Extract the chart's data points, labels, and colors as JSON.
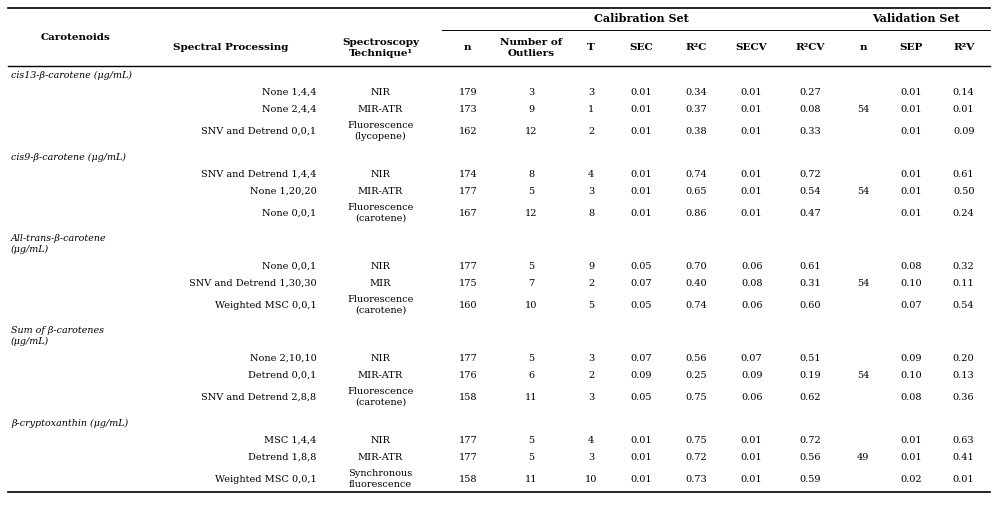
{
  "sections": [
    {
      "label": "cis13-β-carotene (μg/mL)",
      "rows": [
        [
          "None 1,4,4",
          "NIR",
          "179",
          "3",
          "3",
          "0.01",
          "0.34",
          "0.01",
          "0.27",
          "",
          "0.01",
          "0.14"
        ],
        [
          "None 2,4,4",
          "MIR-ATR",
          "173",
          "9",
          "1",
          "0.01",
          "0.37",
          "0.01",
          "0.08",
          "54",
          "0.01",
          "0.01"
        ],
        [
          "SNV and Detrend 0,0,1",
          "Fluorescence\n(lycopene)",
          "162",
          "12",
          "2",
          "0.01",
          "0.38",
          "0.01",
          "0.33",
          "",
          "0.01",
          "0.09"
        ]
      ]
    },
    {
      "label": "cis9-β-carotene (μg/mL)",
      "rows": [
        [
          "SNV and Detrend 1,4,4",
          "NIR",
          "174",
          "8",
          "4",
          "0.01",
          "0.74",
          "0.01",
          "0.72",
          "",
          "0.01",
          "0.61"
        ],
        [
          "None 1,20,20",
          "MIR-ATR",
          "177",
          "5",
          "3",
          "0.01",
          "0.65",
          "0.01",
          "0.54",
          "54",
          "0.01",
          "0.50"
        ],
        [
          "None 0,0,1",
          "Fluorescence\n(carotene)",
          "167",
          "12",
          "8",
          "0.01",
          "0.86",
          "0.01",
          "0.47",
          "",
          "0.01",
          "0.24"
        ]
      ]
    },
    {
      "label": "All-trans-β-carotene\n(μg/mL)",
      "rows": [
        [
          "None 0,0,1",
          "NIR",
          "177",
          "5",
          "9",
          "0.05",
          "0.70",
          "0.06",
          "0.61",
          "",
          "0.08",
          "0.32"
        ],
        [
          "SNV and Detrend 1,30,30",
          "MIR",
          "175",
          "7",
          "2",
          "0.07",
          "0.40",
          "0.08",
          "0.31",
          "54",
          "0.10",
          "0.11"
        ],
        [
          "Weighted MSC 0,0,1",
          "Fluorescence\n(carotene)",
          "160",
          "10",
          "5",
          "0.05",
          "0.74",
          "0.06",
          "0.60",
          "",
          "0.07",
          "0.54"
        ]
      ]
    },
    {
      "label": "Sum of β-carotenes\n(μg/mL)",
      "rows": [
        [
          "None 2,10,10",
          "NIR",
          "177",
          "5",
          "3",
          "0.07",
          "0.56",
          "0.07",
          "0.51",
          "",
          "0.09",
          "0.20"
        ],
        [
          "Detrend 0,0,1",
          "MIR-ATR",
          "176",
          "6",
          "2",
          "0.09",
          "0.25",
          "0.09",
          "0.19",
          "54",
          "0.10",
          "0.13"
        ],
        [
          "SNV and Detrend 2,8,8",
          "Fluorescence\n(carotene)",
          "158",
          "11",
          "3",
          "0.05",
          "0.75",
          "0.06",
          "0.62",
          "",
          "0.08",
          "0.36"
        ]
      ]
    },
    {
      "label": "β-cryptoxanthin (μg/mL)",
      "rows": [
        [
          "MSC 1,4,4",
          "NIR",
          "177",
          "5",
          "4",
          "0.01",
          "0.75",
          "0.01",
          "0.72",
          "",
          "0.01",
          "0.63"
        ],
        [
          "Detrend 1,8,8",
          "MIR-ATR",
          "177",
          "5",
          "3",
          "0.01",
          "0.72",
          "0.01",
          "0.56",
          "49",
          "0.01",
          "0.41"
        ],
        [
          "Weighted MSC 0,0,1",
          "Synchronous\nfluorescence",
          "158",
          "11",
          "10",
          "0.01",
          "0.73",
          "0.01",
          "0.59",
          "",
          "0.02",
          "0.01"
        ]
      ]
    }
  ],
  "bg_color": "#ffffff",
  "font_size": 7.0,
  "header_font_size": 7.5
}
